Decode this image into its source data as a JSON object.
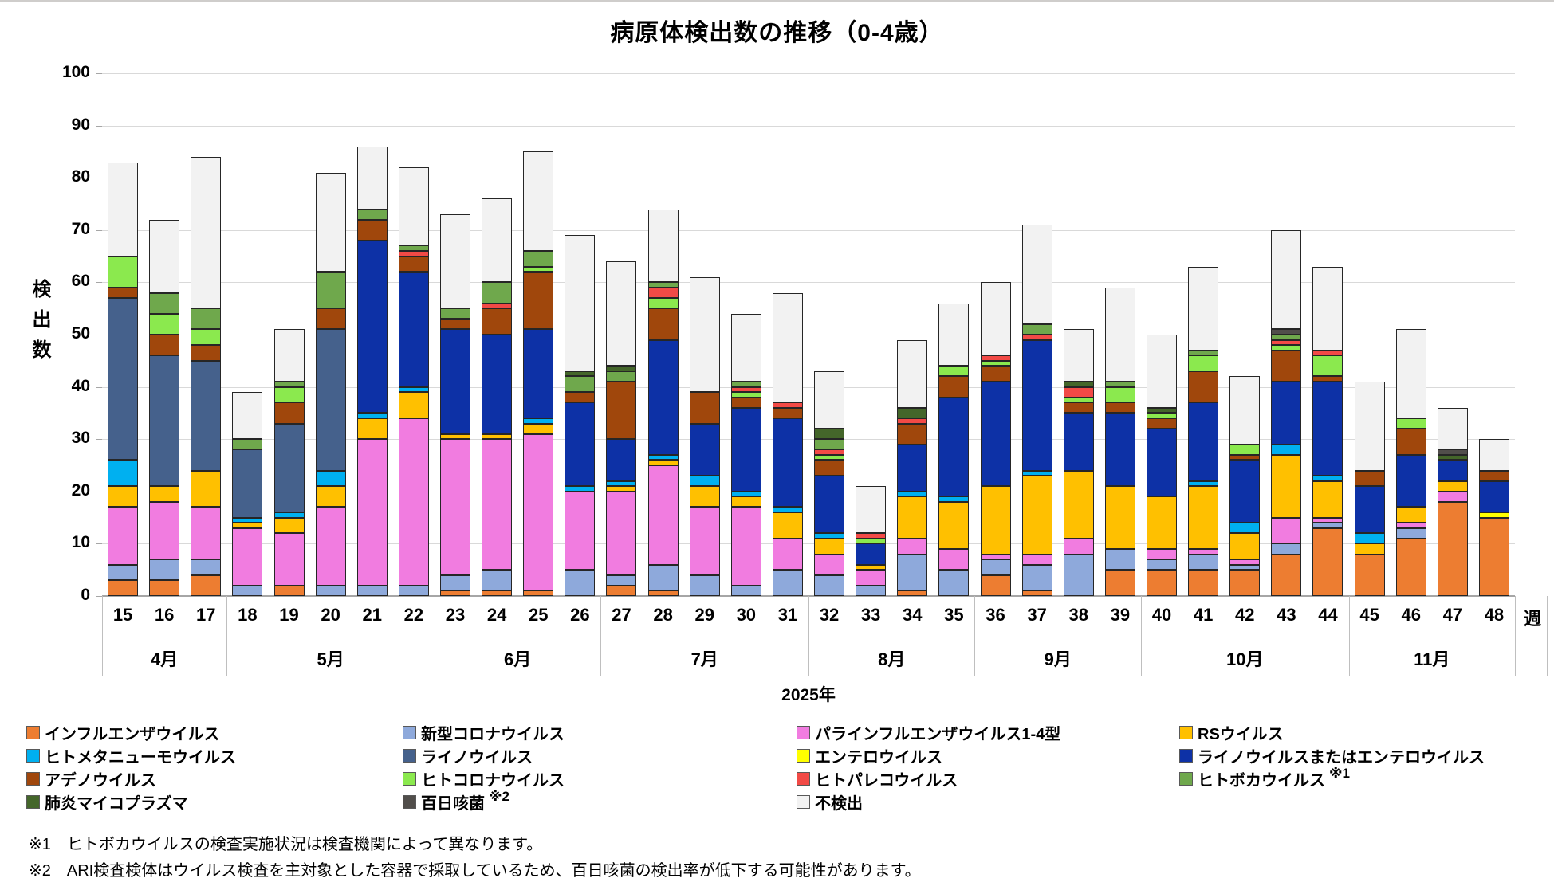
{
  "title": "病原体検出数の推移（0-4歳）",
  "y_axis": {
    "title": "検出数"
  },
  "x_axis": {
    "unit_label": "週",
    "year_label": "2025年"
  },
  "footnotes": [
    "※1　ヒトボカウイルスの検査実施状況は検査機関によって異なります。",
    "※2　ARI検査検体はウイルス検査を主対象とした容器で採取しているため、百日咳菌の検出率が低下する可能性があります。"
  ],
  "chart_data": {
    "type": "bar",
    "stacked": true,
    "grid": true,
    "ylim": [
      0,
      100
    ],
    "yticks": [
      0,
      10,
      20,
      30,
      40,
      50,
      60,
      70,
      80,
      90,
      100
    ],
    "categories": [
      "15",
      "16",
      "17",
      "18",
      "19",
      "20",
      "21",
      "22",
      "23",
      "24",
      "25",
      "26",
      "27",
      "28",
      "29",
      "30",
      "31",
      "32",
      "33",
      "34",
      "35",
      "36",
      "37",
      "38",
      "39",
      "40",
      "41",
      "42",
      "43",
      "44",
      "45",
      "46",
      "47",
      "48"
    ],
    "month_groups": [
      {
        "label": "4月",
        "weeks": 3
      },
      {
        "label": "5月",
        "weeks": 5
      },
      {
        "label": "6月",
        "weeks": 4
      },
      {
        "label": "7月",
        "weeks": 5
      },
      {
        "label": "8月",
        "weeks": 4
      },
      {
        "label": "9月",
        "weeks": 4
      },
      {
        "label": "10月",
        "weeks": 5
      },
      {
        "label": "11月",
        "weeks": 4
      }
    ],
    "series": [
      {
        "name": "インフルエンザウイルス",
        "color": "#ED7D31",
        "values": [
          3,
          3,
          4,
          0,
          2,
          0,
          0,
          0,
          1,
          1,
          1,
          0,
          2,
          1,
          0,
          0,
          0,
          0,
          0,
          1,
          0,
          4,
          1,
          0,
          5,
          5,
          5,
          5,
          8,
          13,
          8,
          11,
          18,
          15
        ]
      },
      {
        "name": "新型コロナウイルス",
        "color": "#8EA9DB",
        "values": [
          3,
          4,
          3,
          2,
          0,
          2,
          2,
          2,
          3,
          4,
          0,
          5,
          2,
          5,
          4,
          2,
          5,
          4,
          2,
          7,
          5,
          3,
          5,
          8,
          4,
          2,
          3,
          1,
          2,
          1,
          0,
          2,
          0,
          0
        ]
      },
      {
        "name": "パラインフルエンザウイルス1-4型",
        "color": "#F17CE0",
        "values": [
          11,
          11,
          10,
          11,
          10,
          15,
          28,
          32,
          26,
          25,
          30,
          15,
          16,
          19,
          13,
          15,
          6,
          4,
          3,
          3,
          4,
          1,
          2,
          3,
          0,
          2,
          1,
          1,
          5,
          1,
          0,
          1,
          2,
          0
        ]
      },
      {
        "name": "RSウイルス",
        "color": "#FFC000",
        "values": [
          4,
          3,
          7,
          1,
          3,
          4,
          4,
          5,
          1,
          1,
          2,
          0,
          1,
          1,
          4,
          2,
          5,
          3,
          1,
          8,
          9,
          13,
          15,
          13,
          12,
          10,
          12,
          5,
          12,
          7,
          2,
          3,
          2,
          0
        ]
      },
      {
        "name": "ヒトメタニューモウイルス",
        "color": "#00B0F0",
        "values": [
          5,
          0,
          0,
          1,
          1,
          3,
          1,
          1,
          0,
          0,
          1,
          1,
          1,
          1,
          2,
          1,
          1,
          1,
          0,
          1,
          1,
          0,
          1,
          0,
          0,
          0,
          1,
          2,
          2,
          1,
          2,
          0,
          0,
          0
        ]
      },
      {
        "name": "ライノウイルス",
        "color": "#45618C",
        "values": [
          31,
          25,
          21,
          13,
          17,
          27,
          0,
          0,
          0,
          0,
          0,
          0,
          0,
          0,
          0,
          0,
          0,
          0,
          0,
          0,
          0,
          0,
          0,
          0,
          0,
          0,
          0,
          0,
          0,
          0,
          0,
          0,
          0,
          0
        ]
      },
      {
        "name": "エンテロウイルス",
        "color": "#FFFF00",
        "values": [
          0,
          0,
          0,
          0,
          0,
          0,
          0,
          0,
          0,
          0,
          0,
          0,
          0,
          0,
          0,
          0,
          0,
          0,
          0,
          0,
          0,
          0,
          0,
          0,
          0,
          0,
          0,
          0,
          0,
          0,
          0,
          0,
          0,
          1
        ]
      },
      {
        "name": "ライノウイルスまたはエンテロウイルス",
        "color": "#0D31A6",
        "values": [
          0,
          0,
          0,
          0,
          0,
          0,
          33,
          22,
          20,
          19,
          17,
          16,
          8,
          22,
          10,
          16,
          17,
          11,
          4,
          9,
          19,
          20,
          25,
          11,
          14,
          13,
          15,
          12,
          12,
          18,
          9,
          10,
          4,
          6
        ]
      },
      {
        "name": "アデノウイルス",
        "color": "#A0470C",
        "values": [
          2,
          4,
          3,
          0,
          4,
          4,
          4,
          3,
          2,
          5,
          11,
          2,
          11,
          6,
          6,
          2,
          2,
          3,
          0,
          4,
          4,
          3,
          0,
          2,
          2,
          2,
          6,
          1,
          6,
          1,
          3,
          5,
          0,
          2
        ]
      },
      {
        "name": "ヒトコロナウイルス",
        "color": "#8BE94E",
        "values": [
          6,
          4,
          3,
          0,
          3,
          0,
          0,
          0,
          0,
          0,
          1,
          0,
          0,
          2,
          0,
          1,
          0,
          1,
          1,
          0,
          2,
          1,
          0,
          1,
          3,
          1,
          3,
          2,
          1,
          4,
          0,
          2,
          0,
          0
        ]
      },
      {
        "name": "ヒトパレコウイルス",
        "color": "#F24A46",
        "values": [
          0,
          0,
          0,
          0,
          0,
          0,
          0,
          1,
          0,
          1,
          0,
          0,
          0,
          2,
          0,
          1,
          1,
          1,
          1,
          1,
          0,
          1,
          1,
          2,
          0,
          0,
          0,
          0,
          1,
          1,
          0,
          0,
          0,
          0
        ]
      },
      {
        "name": "ヒトボカウイルス",
        "color": "#6FA84C",
        "note": "※1",
        "values": [
          0,
          4,
          4,
          2,
          1,
          7,
          2,
          1,
          2,
          4,
          3,
          3,
          2,
          1,
          0,
          1,
          0,
          2,
          0,
          0,
          0,
          0,
          2,
          0,
          1,
          0,
          1,
          0,
          1,
          0,
          0,
          0,
          0,
          0
        ]
      },
      {
        "name": "肺炎マイコプラズマ",
        "color": "#44662A",
        "values": [
          0,
          0,
          0,
          0,
          0,
          0,
          0,
          0,
          0,
          0,
          0,
          1,
          1,
          0,
          0,
          0,
          0,
          2,
          0,
          2,
          0,
          0,
          0,
          1,
          0,
          1,
          0,
          0,
          0,
          0,
          0,
          0,
          1,
          0
        ]
      },
      {
        "name": "百日咳菌",
        "color": "#514E4B",
        "note": "※2",
        "values": [
          0,
          0,
          0,
          0,
          0,
          0,
          0,
          0,
          0,
          0,
          0,
          0,
          0,
          0,
          0,
          0,
          0,
          0,
          0,
          0,
          0,
          0,
          0,
          0,
          0,
          0,
          0,
          0,
          1,
          0,
          0,
          0,
          1,
          0
        ]
      },
      {
        "name": "不検出",
        "color": "#F2F2F2",
        "values": [
          18,
          14,
          29,
          9,
          10,
          19,
          12,
          15,
          18,
          16,
          19,
          26,
          20,
          14,
          22,
          13,
          21,
          11,
          9,
          13,
          12,
          14,
          19,
          10,
          18,
          14,
          16,
          13,
          19,
          16,
          17,
          17,
          8,
          6
        ]
      }
    ]
  }
}
